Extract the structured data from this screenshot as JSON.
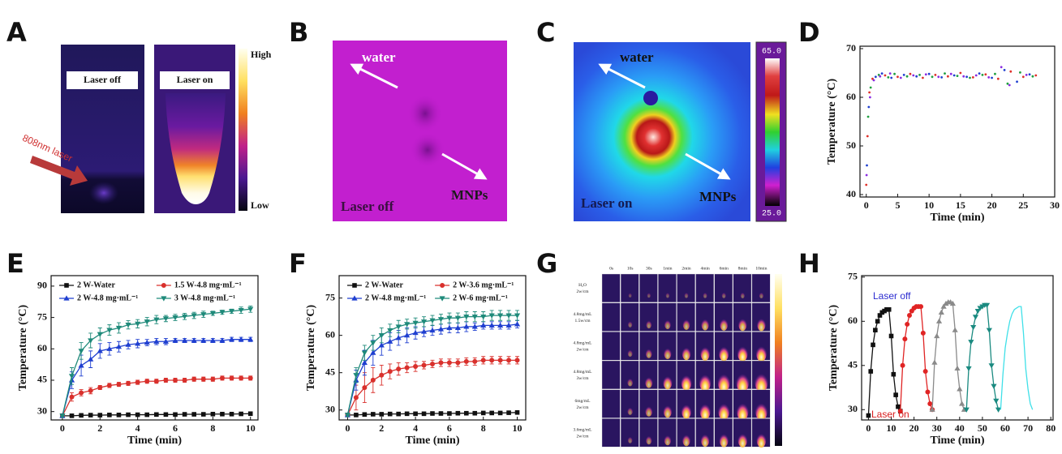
{
  "panel_labels": [
    "A",
    "B",
    "C",
    "D",
    "E",
    "F",
    "G",
    "H"
  ],
  "panel_a": {
    "left_label": "Laser off",
    "right_label": "Laser on",
    "arrow_label": "808nm laser",
    "colorbar_high": "High",
    "colorbar_low": "Low"
  },
  "panel_b": {
    "water": "water",
    "mnps": "MNPs",
    "state": "Laser off"
  },
  "panel_c": {
    "water": "water",
    "mnps": "MNPs",
    "state": "Laser on",
    "colorbar_max": "65.0",
    "colorbar_min": "25.0"
  },
  "panel_g": {
    "columns": [
      "0s",
      "10s",
      "30s",
      "1min",
      "2min",
      "4min",
      "6min",
      "8min",
      "10min"
    ],
    "rows": [
      [
        "H₂O",
        "2w/cm"
      ],
      [
        "4.8mg/mL",
        "1.5w/cm"
      ],
      [
        "4.8mg/mL",
        "2w/cm"
      ],
      [
        "4.8mg/mL",
        "3w/cm"
      ],
      [
        "6mg/mL",
        "2w/cm"
      ],
      [
        "3.6mg/mL",
        "2w/cm"
      ]
    ]
  },
  "chart_data": [
    {
      "type": "scatter",
      "x_label": "Time (min)",
      "y_label": "Temperature (°C)",
      "xlim": [
        -1,
        30
      ],
      "ylim": [
        39.5,
        70.5
      ],
      "xticks": [
        0,
        5,
        10,
        15,
        20,
        25,
        30
      ],
      "yticks": [
        40,
        50,
        60,
        70
      ],
      "series": [
        {
          "color": "#e0302a",
          "marker": "dot",
          "x": [
            0,
            0.2,
            0.5,
            1,
            3,
            5,
            7,
            9,
            11,
            13,
            15,
            17,
            19,
            21,
            23,
            25,
            27
          ],
          "values": [
            42,
            52,
            61,
            63.8,
            64.5,
            64.2,
            64.8,
            64.0,
            64.6,
            64.3,
            65.0,
            64.1,
            64.7,
            63.8,
            65.3,
            64.2,
            64.5
          ]
        },
        {
          "color": "#2040d0",
          "marker": "dot",
          "x": [
            0.1,
            0.4,
            1.5,
            2.5,
            4,
            6,
            8,
            10,
            12,
            14,
            16,
            18,
            20,
            22,
            24,
            26
          ],
          "values": [
            46,
            58,
            64.2,
            64.9,
            64.0,
            64.6,
            64.3,
            64.8,
            64.1,
            64.5,
            64.2,
            64.9,
            64.0,
            65.6,
            63.2,
            64.7
          ]
        },
        {
          "color": "#20a040",
          "marker": "dot",
          "x": [
            0.3,
            0.7,
            2,
            3.5,
            4.5,
            6.5,
            8.5,
            10.5,
            12.5,
            14.5,
            16.5,
            18.5,
            20.5,
            22.5,
            24.5,
            26.5
          ],
          "values": [
            56,
            62,
            64.6,
            64.1,
            64.8,
            64.3,
            64.6,
            64.2,
            64.9,
            64.4,
            64.0,
            64.6,
            64.8,
            62.8,
            65.1,
            64.3
          ]
        },
        {
          "color": "#8a2be2",
          "marker": "dot",
          "x": [
            0.05,
            0.6,
            1.2,
            2.2,
            3.8,
            5.5,
            7.5,
            9.5,
            11.5,
            13.5,
            15.5,
            17.5,
            19.5,
            21.5,
            22.8,
            25.5
          ],
          "values": [
            44,
            60,
            63.5,
            64.3,
            64.9,
            64.0,
            64.5,
            64.7,
            64.2,
            64.8,
            64.3,
            64.5,
            64.1,
            66.2,
            62.5,
            64.6
          ]
        }
      ]
    },
    {
      "type": "line",
      "x_label": "Time (min)",
      "y_label": "Temperature (°C)",
      "xlim": [
        -0.6,
        10.4
      ],
      "ylim": [
        26,
        95
      ],
      "xticks": [
        0,
        2,
        4,
        6,
        8,
        10
      ],
      "yticks": [
        30,
        45,
        60,
        75,
        90
      ],
      "legend": "upper-left",
      "x": [
        0,
        0.5,
        1,
        1.5,
        2,
        2.5,
        3,
        3.5,
        4,
        4.5,
        5,
        5.5,
        6,
        6.5,
        7,
        7.5,
        8,
        8.5,
        9,
        9.5,
        10
      ],
      "series": [
        {
          "name": "2 W-Water",
          "color": "#111111",
          "marker": "square",
          "values": [
            28,
            28,
            28.2,
            28.3,
            28.3,
            28.4,
            28.4,
            28.5,
            28.5,
            28.5,
            28.6,
            28.6,
            28.6,
            28.7,
            28.7,
            28.7,
            28.8,
            28.8,
            28.8,
            28.9,
            29
          ]
        },
        {
          "name": "1.5 W-4.8 mg·mL⁻¹",
          "color": "#d9302c",
          "marker": "circle",
          "values": [
            28,
            37,
            39,
            40,
            41.5,
            42.5,
            43,
            43.5,
            44,
            44.5,
            44.5,
            45,
            45,
            45,
            45.5,
            45.5,
            45.5,
            46,
            46,
            46,
            46
          ],
          "errors": [
            0.5,
            2,
            1.5,
            1.5,
            1,
            1,
            1,
            1,
            1,
            1,
            1,
            1,
            1,
            1,
            1,
            1,
            1,
            1,
            1,
            1,
            1
          ]
        },
        {
          "name": "2 W-4.8 mg·mL⁻¹",
          "color": "#1f3fd0",
          "marker": "triangle-up",
          "values": [
            28,
            45,
            52,
            55,
            59,
            60,
            61,
            62,
            62.5,
            63,
            63.5,
            63.5,
            64,
            64,
            64,
            64,
            64,
            64,
            64.5,
            64.5,
            64.5
          ],
          "errors": [
            0.5,
            4,
            5,
            4,
            3.5,
            3,
            2.5,
            2,
            2,
            1.5,
            1.5,
            1.5,
            1,
            1,
            1,
            1,
            1,
            1,
            1,
            1,
            1
          ]
        },
        {
          "name": "3 W-4.8 mg·mL⁻¹",
          "color": "#1f8a7a",
          "marker": "triangle-down",
          "values": [
            28,
            47,
            59,
            64,
            67,
            69,
            70,
            71.5,
            72,
            73,
            74,
            74.5,
            75,
            75.5,
            76,
            76.5,
            77,
            77.5,
            78,
            78.5,
            79
          ],
          "errors": [
            0.5,
            4,
            4,
            3.5,
            3,
            2.5,
            2.5,
            2,
            2,
            2,
            2,
            1.5,
            1.5,
            1.5,
            1.5,
            1.5,
            1,
            1,
            1,
            1.5,
            1.5
          ]
        }
      ]
    },
    {
      "type": "line",
      "x_label": "Time (min)",
      "y_label": "Temperature (°C)",
      "xlim": [
        -0.5,
        10.5
      ],
      "ylim": [
        26,
        84
      ],
      "xticks": [
        0,
        2,
        4,
        6,
        8,
        10
      ],
      "yticks": [
        30,
        45,
        60,
        75
      ],
      "legend": "upper-left",
      "x": [
        0,
        0.5,
        1,
        1.5,
        2,
        2.5,
        3,
        3.5,
        4,
        4.5,
        5,
        5.5,
        6,
        6.5,
        7,
        7.5,
        8,
        8.5,
        9,
        9.5,
        10
      ],
      "series": [
        {
          "name": "2 W-Water",
          "color": "#111111",
          "marker": "square",
          "values": [
            28,
            28,
            28.2,
            28.3,
            28.3,
            28.4,
            28.4,
            28.5,
            28.5,
            28.5,
            28.6,
            28.6,
            28.6,
            28.7,
            28.7,
            28.7,
            28.8,
            28.8,
            28.8,
            28.9,
            29
          ]
        },
        {
          "name": "2 W-3.6 mg·mL⁻¹",
          "color": "#d9302c",
          "marker": "circle",
          "values": [
            28,
            35,
            39,
            42,
            44,
            45.5,
            46.5,
            47,
            47.5,
            48,
            48.5,
            49,
            49,
            49,
            49.5,
            49.5,
            50,
            50,
            50,
            50,
            50
          ],
          "errors": [
            0.5,
            5,
            6,
            5,
            4,
            3,
            2.5,
            2,
            2,
            1.5,
            1.5,
            1.5,
            1.5,
            1.5,
            1.5,
            1.5,
            1.5,
            1.5,
            1.5,
            1.5,
            1.5
          ]
        },
        {
          "name": "2 W-4.8 mg·mL⁻¹",
          "color": "#1f3fd0",
          "marker": "triangle-up",
          "values": [
            28,
            42,
            49,
            53,
            56,
            57.5,
            59,
            60,
            61,
            61.5,
            62,
            62.5,
            63,
            63,
            63.5,
            63.5,
            64,
            64,
            64,
            64,
            64.5
          ],
          "errors": [
            0.5,
            4,
            5,
            5,
            4,
            3.5,
            3,
            3,
            2.5,
            2,
            2,
            2,
            2,
            2,
            2,
            1.5,
            1.5,
            1.5,
            1.5,
            1.5,
            1.5
          ]
        },
        {
          "name": "2 W-6 mg·mL⁻¹",
          "color": "#1f8a7a",
          "marker": "triangle-down",
          "values": [
            28,
            44,
            53,
            57,
            60,
            62,
            63.5,
            64.5,
            65,
            65.5,
            66,
            66.5,
            67,
            67,
            67.5,
            67.5,
            67.5,
            68,
            68,
            68,
            68
          ],
          "errors": [
            0.5,
            3,
            3,
            3,
            3,
            2.5,
            2.5,
            2,
            2,
            2,
            2,
            2,
            2,
            2,
            2,
            2,
            2,
            2,
            2,
            2,
            2
          ]
        }
      ]
    },
    {
      "type": "line",
      "x_label": "Time (min)",
      "y_label": "Temperature (°C)",
      "xlim": [
        -3,
        81
      ],
      "ylim": [
        26.5,
        75.5
      ],
      "xticks": [
        0,
        10,
        20,
        30,
        40,
        50,
        60,
        70,
        80
      ],
      "yticks": [
        30,
        45,
        60,
        75
      ],
      "annotations": [
        {
          "text": "Laser off",
          "color": "#2b2bd0"
        },
        {
          "text": "Laser on",
          "color": "#d92020"
        }
      ],
      "series": [
        {
          "color": "#111111",
          "marker": "square",
          "x": [
            0,
            1,
            2,
            3,
            4,
            5,
            6,
            7,
            8,
            9,
            10,
            11,
            12,
            13,
            14
          ],
          "values": [
            28,
            43,
            52,
            57,
            60,
            62,
            63,
            63.5,
            64,
            64,
            55,
            42,
            35,
            31,
            29.5
          ]
        },
        {
          "color": "#e02424",
          "marker": "circle",
          "x": [
            14,
            15,
            16,
            17,
            18,
            19,
            20,
            21,
            22,
            23,
            24,
            25,
            26,
            27,
            28
          ],
          "values": [
            29.5,
            45,
            54,
            59,
            62,
            63.5,
            64.5,
            65,
            65,
            65,
            56,
            43,
            36,
            32,
            30
          ]
        },
        {
          "color": "#8a8a8a",
          "marker": "triangle-up",
          "x": [
            28,
            29,
            30,
            31,
            32,
            33,
            34,
            35,
            36,
            37,
            38,
            39,
            40,
            41,
            42
          ],
          "values": [
            30,
            46,
            55,
            60,
            63,
            65,
            66,
            66.5,
            66.5,
            66,
            57,
            44,
            37,
            32,
            30
          ]
        },
        {
          "color": "#1a8a80",
          "marker": "triangle-down",
          "x": [
            43,
            44,
            45,
            46,
            47,
            48,
            49,
            50,
            51,
            52,
            53,
            54,
            55,
            56,
            57
          ],
          "values": [
            30,
            44,
            53,
            58,
            61.5,
            63.5,
            64.5,
            65,
            65.5,
            65.5,
            57,
            45,
            38,
            33,
            30
          ]
        },
        {
          "color": "#40e0e8",
          "x": [
            58,
            59,
            60,
            61,
            62,
            63,
            64,
            65,
            66,
            67,
            68,
            69,
            70,
            71,
            72
          ],
          "values": [
            30,
            42,
            51,
            56,
            60,
            62.5,
            64,
            64.5,
            65,
            65,
            56,
            44,
            37,
            32,
            30
          ]
        }
      ]
    }
  ]
}
